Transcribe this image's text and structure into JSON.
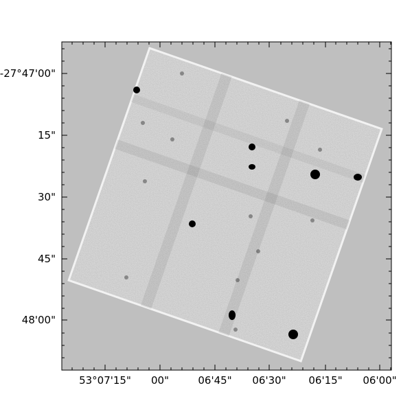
{
  "image": {
    "y_tick_labels": [
      "-27°47'00\"",
      "15\"",
      "30\"",
      "45\"",
      "48'00\""
    ],
    "x_tick_labels": [
      "53°07'15\"",
      "00\"",
      "06'45\"",
      "06'30\"",
      "06'15\"",
      "06'00\""
    ]
  }
}
